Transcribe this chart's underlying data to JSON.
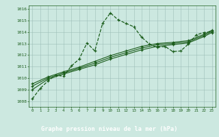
{
  "title": "Graphe pression niveau de la mer (hPa)",
  "background_color": "#cce8e0",
  "label_bg_color": "#2a6e2a",
  "label_text_color": "#ffffff",
  "line_color": "#1a5c1a",
  "xlim": [
    -0.5,
    23.5
  ],
  "ylim": [
    1007.5,
    1016.3
  ],
  "xtick_labels": [
    "0",
    "1",
    "2",
    "3",
    "4",
    "5",
    "6",
    "7",
    "8",
    "9",
    "10",
    "11",
    "12",
    "13",
    "14",
    "15",
    "16",
    "17",
    "18",
    "19",
    "20",
    "21",
    "22",
    "23"
  ],
  "yticks": [
    1008,
    1009,
    1010,
    1011,
    1012,
    1013,
    1014,
    1015,
    1016
  ],
  "series1_x": [
    0,
    1,
    2,
    3,
    4,
    5,
    6,
    7,
    8,
    9,
    10,
    11,
    12,
    13,
    14,
    15,
    16,
    17,
    18,
    19,
    20,
    21,
    22,
    23
  ],
  "series1_y": [
    1008.2,
    1009.1,
    1009.75,
    1010.25,
    1010.15,
    1011.05,
    1011.65,
    1013.05,
    1012.35,
    1014.75,
    1015.65,
    1015.05,
    1014.75,
    1014.45,
    1013.55,
    1012.95,
    1012.65,
    1012.75,
    1012.3,
    1012.35,
    1012.95,
    1013.75,
    1013.95,
    1014.05
  ],
  "series2_x": [
    0,
    2,
    4,
    6,
    8,
    10,
    12,
    14,
    16,
    18,
    20,
    22,
    23
  ],
  "series2_y": [
    1009.0,
    1009.9,
    1010.35,
    1010.75,
    1011.15,
    1011.65,
    1012.05,
    1012.45,
    1012.75,
    1012.9,
    1013.05,
    1013.6,
    1013.95
  ],
  "series3_x": [
    0,
    2,
    4,
    6,
    8,
    10,
    12,
    14,
    16,
    18,
    20,
    22,
    23
  ],
  "series3_y": [
    1009.3,
    1010.0,
    1010.45,
    1010.85,
    1011.3,
    1011.8,
    1012.2,
    1012.6,
    1012.9,
    1013.0,
    1013.15,
    1013.7,
    1014.05
  ],
  "series4_x": [
    0,
    2,
    4,
    6,
    8,
    10,
    12,
    14,
    16,
    18,
    20,
    22,
    23
  ],
  "series4_y": [
    1009.5,
    1010.1,
    1010.55,
    1010.95,
    1011.45,
    1011.95,
    1012.35,
    1012.75,
    1013.0,
    1013.1,
    1013.25,
    1013.8,
    1014.15
  ]
}
